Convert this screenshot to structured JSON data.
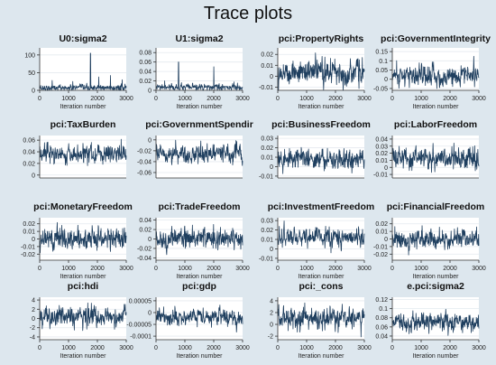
{
  "figure_title": "Trace plots",
  "colors": {
    "background": "#dde7ee",
    "plot_area": "#ffffff",
    "trace": "#1f3f5f"
  },
  "chart_data": [
    {
      "type": "line",
      "title": "U0:sigma2",
      "xlabel": "Iteration number",
      "xlim": [
        0,
        3000
      ],
      "xticks": [
        0,
        1000,
        2000,
        3000
      ],
      "ylim": [
        0,
        120
      ],
      "yticks": [
        0,
        50,
        100
      ],
      "ytick_labels": [
        "0",
        "50",
        "100"
      ],
      "baseline": 7,
      "noise": 5,
      "spikes": [
        [
          430,
          28
        ],
        [
          1150,
          25
        ],
        [
          1760,
          105
        ],
        [
          2050,
          38
        ],
        [
          2450,
          42
        ],
        [
          2860,
          30
        ]
      ]
    },
    {
      "type": "line",
      "title": "U1:sigma2",
      "xlabel": "Iteration number",
      "xlim": [
        0,
        3000
      ],
      "xticks": [
        0,
        1000,
        2000,
        3000
      ],
      "ylim": [
        0,
        0.09
      ],
      "yticks": [
        0,
        0.02,
        0.04,
        0.06,
        0.08
      ],
      "ytick_labels": [
        "0",
        "0.02",
        "0.04",
        "0.06",
        "0.08"
      ],
      "baseline": 0.006,
      "noise": 0.004,
      "spikes": [
        [
          300,
          0.02
        ],
        [
          780,
          0.06
        ],
        [
          2000,
          0.05
        ],
        [
          2700,
          0.018
        ]
      ]
    },
    {
      "type": "line",
      "title": "pci:PropertyRights",
      "xlabel": "Iteration number",
      "xlim": [
        0,
        3000
      ],
      "xticks": [
        0,
        1000,
        2000,
        3000
      ],
      "ylim": [
        -0.013,
        0.026
      ],
      "yticks": [
        -0.01,
        0,
        0.01,
        0.02
      ],
      "ytick_labels": [
        "-0.01",
        "0",
        "0.01",
        "0.02"
      ],
      "baseline": 0.004,
      "noise": 0.007,
      "spikes": []
    },
    {
      "type": "line",
      "title": "pci:GovernmentIntegrity",
      "xlabel": "Iteration number",
      "xlim": [
        0,
        3000
      ],
      "xticks": [
        0,
        1000,
        2000,
        3000
      ],
      "ylim": [
        -0.06,
        0.17
      ],
      "yticks": [
        -0.05,
        0,
        0.05,
        0.1,
        0.15
      ],
      "ytick_labels": [
        "-0.05",
        "0",
        "0.05",
        "0.1",
        "0.15"
      ],
      "baseline": 0.02,
      "noise": 0.035,
      "spikes": []
    },
    {
      "type": "line",
      "title": "pci:TaxBurden",
      "xlabel": "",
      "xlim": [
        0,
        3000
      ],
      "xticks": [],
      "ylim": [
        -0.005,
        0.068
      ],
      "yticks": [
        0,
        0.02,
        0.04,
        0.06
      ],
      "ytick_labels": [
        "0",
        "0.02",
        "0.04",
        "0.06"
      ],
      "baseline": 0.035,
      "noise": 0.01,
      "spikes": []
    },
    {
      "type": "line",
      "title": "pci:GovernmentSpendir",
      "xlabel": "",
      "xlim": [
        0,
        3000
      ],
      "xticks": [],
      "ylim": [
        -0.07,
        0.008
      ],
      "yticks": [
        -0.06,
        -0.04,
        -0.02,
        0
      ],
      "ytick_labels": [
        "-0.06",
        "-0.04",
        "-0.02",
        "0"
      ],
      "baseline": -0.025,
      "noise": 0.011,
      "spikes": []
    },
    {
      "type": "line",
      "title": "pci:BusinessFreedom",
      "xlabel": "",
      "xlim": [
        0,
        3000
      ],
      "xticks": [],
      "ylim": [
        -0.012,
        0.033
      ],
      "yticks": [
        -0.01,
        0,
        0.01,
        0.02,
        0.03
      ],
      "ytick_labels": [
        "-0.01",
        "0",
        "0.01",
        "0.02",
        "0.03"
      ],
      "baseline": 0.008,
      "noise": 0.007,
      "spikes": []
    },
    {
      "type": "line",
      "title": "pci:LaborFreedom",
      "xlabel": "",
      "xlim": [
        0,
        3000
      ],
      "xticks": [],
      "ylim": [
        -0.015,
        0.045
      ],
      "yticks": [
        -0.01,
        0,
        0.01,
        0.02,
        0.03,
        0.04
      ],
      "ytick_labels": [
        "-0.01",
        "0",
        "0.01",
        "0.02",
        "0.03",
        "0.04"
      ],
      "baseline": 0.013,
      "noise": 0.009,
      "spikes": []
    },
    {
      "type": "line",
      "title": "pci:MonetaryFreedom",
      "xlabel": "Iteration number",
      "xlim": [
        0,
        3000
      ],
      "xticks": [
        0,
        1000,
        2000,
        3000
      ],
      "ylim": [
        -0.028,
        0.028
      ],
      "yticks": [
        -0.02,
        -0.01,
        0,
        0.01,
        0.02
      ],
      "ytick_labels": [
        "-0.02",
        "-0.01",
        "0",
        "0.01",
        "0.02"
      ],
      "baseline": 0,
      "noise": 0.009,
      "spikes": []
    },
    {
      "type": "line",
      "title": "pci:TradeFreedom",
      "xlabel": "Iteration number",
      "xlim": [
        0,
        3000
      ],
      "xticks": [
        0,
        1000,
        2000,
        3000
      ],
      "ylim": [
        -0.045,
        0.045
      ],
      "yticks": [
        -0.04,
        -0.02,
        0,
        0.02,
        0.04
      ],
      "ytick_labels": [
        "-0.04",
        "-0.02",
        "0",
        "0.02",
        "0.04"
      ],
      "baseline": 0,
      "noise": 0.013,
      "spikes": []
    },
    {
      "type": "line",
      "title": "pci:InvestmentFreedom",
      "xlabel": "Iteration number",
      "xlim": [
        0,
        3000
      ],
      "xticks": [
        0,
        1000,
        2000,
        3000
      ],
      "ylim": [
        -0.012,
        0.033
      ],
      "yticks": [
        -0.01,
        0,
        0.01,
        0.02,
        0.03
      ],
      "ytick_labels": [
        "-0.01",
        "0",
        "0.01",
        "0.02",
        "0.03"
      ],
      "baseline": 0.012,
      "noise": 0.006,
      "spikes": []
    },
    {
      "type": "line",
      "title": "pci:FinancialFreedom",
      "xlabel": "Iteration number",
      "xlim": [
        0,
        3000
      ],
      "xticks": [
        0,
        1000,
        2000,
        3000
      ],
      "ylim": [
        -0.028,
        0.028
      ],
      "yticks": [
        -0.02,
        -0.01,
        0,
        0.01,
        0.02
      ],
      "ytick_labels": [
        "-0.02",
        "-0.01",
        "0",
        "0.01",
        "0.02"
      ],
      "baseline": 0,
      "noise": 0.008,
      "spikes": []
    },
    {
      "type": "line",
      "title": "pci:hdi",
      "xlabel": "Iteration number",
      "xlim": [
        0,
        3000
      ],
      "xticks": [
        0,
        1000,
        2000,
        3000
      ],
      "ylim": [
        -4.6,
        4.6
      ],
      "yticks": [
        -4,
        -2,
        0,
        2,
        4
      ],
      "ytick_labels": [
        "-4",
        "-2",
        "0",
        "2",
        "4"
      ],
      "baseline": 0.4,
      "noise": 1.3,
      "spikes": []
    },
    {
      "type": "line",
      "title": "pci:gdp",
      "xlabel": "Iteration number",
      "xlim": [
        0,
        3000
      ],
      "xticks": [
        0,
        1000,
        2000,
        3000
      ],
      "ylim": [
        -0.000115,
        6.5e-05
      ],
      "yticks": [
        -0.0001,
        -5e-05,
        0,
        5e-05
      ],
      "ytick_labels": [
        "-0.0001",
        "-0.00005",
        "0",
        "0.00005"
      ],
      "baseline": -2e-05,
      "noise": 2.2e-05,
      "spikes": []
    },
    {
      "type": "line",
      "title": "pci:_cons",
      "xlabel": "Iteration number",
      "xlim": [
        0,
        3000
      ],
      "xticks": [
        0,
        1000,
        2000,
        3000
      ],
      "ylim": [
        -2.6,
        4.6
      ],
      "yticks": [
        -2,
        0,
        2,
        4
      ],
      "ytick_labels": [
        "-2",
        "0",
        "2",
        "4"
      ],
      "baseline": 1,
      "noise": 1.2,
      "spikes": []
    },
    {
      "type": "line",
      "title": "e.pci:sigma2",
      "xlabel": "Iteration number",
      "xlim": [
        0,
        3000
      ],
      "xticks": [
        0,
        1000,
        2000,
        3000
      ],
      "ylim": [
        0.032,
        0.125
      ],
      "yticks": [
        0.04,
        0.06,
        0.08,
        0.1,
        0.12
      ],
      "ytick_labels": [
        "0.04",
        "0.06",
        "0.08",
        "0.1",
        "0.12"
      ],
      "baseline": 0.07,
      "noise": 0.012,
      "spikes": []
    }
  ]
}
